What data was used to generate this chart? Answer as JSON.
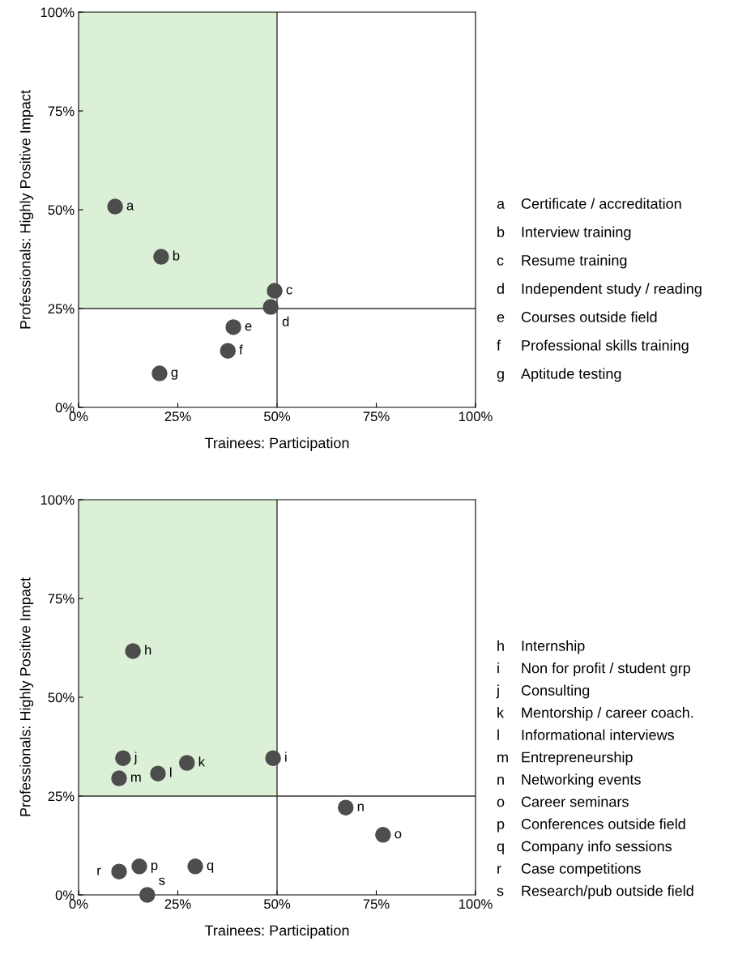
{
  "chart_data": [
    {
      "type": "scatter",
      "xlabel": "Trainees: Participation",
      "ylabel": "Professionals: Highly Positive Impact",
      "x": [
        9.2,
        20.8,
        49.4,
        48.4,
        39.0,
        37.6,
        20.4
      ],
      "series": [
        {
          "color": "#4d4d4d",
          "values": [
            50.8,
            38.1,
            29.5,
            25.4,
            20.3,
            14.3,
            8.6
          ],
          "value_labels": [
            "a",
            "b",
            "c",
            "d",
            "e",
            "f",
            "g"
          ]
        }
      ],
      "xlim": [
        0,
        100
      ],
      "ylim": [
        0,
        100
      ],
      "xticks": [
        {
          "value": 0,
          "label": "0%"
        },
        {
          "value": 25,
          "label": "25%"
        },
        {
          "value": 50,
          "label": "50%"
        },
        {
          "value": 75,
          "label": "75%"
        },
        {
          "value": 100,
          "label": "100%"
        }
      ],
      "yticks": [
        {
          "value": 0,
          "label": "0%"
        },
        {
          "value": 25,
          "label": "25%"
        },
        {
          "value": 50,
          "label": "50%"
        },
        {
          "value": 75,
          "label": "75%"
        },
        {
          "value": 100,
          "label": "100%"
        }
      ],
      "ref_lines": [
        {
          "axis": "x",
          "value": 50,
          "color": "#333333"
        },
        {
          "axis": "y",
          "value": 25,
          "color": "#333333"
        }
      ],
      "bands": [
        {
          "axis": "x",
          "from": 0,
          "to": 50,
          "color": "#dcf0d8"
        }
      ],
      "marker": "circle",
      "grid": false,
      "legend": false,
      "annotations": [
        "a Certificate / accreditation",
        "b Interview training",
        "c Resume training",
        "d Independent study / reading",
        "e Courses outside field",
        "f Professional skills training",
        "g Aptitude testing"
      ]
    },
    {
      "type": "scatter",
      "xlabel": "Trainees: Participation",
      "ylabel": "Professionals: Highly Positive Impact",
      "x": [
        13.7,
        49.0,
        11.2,
        27.3,
        20.0,
        10.2,
        67.3,
        76.7,
        15.3,
        29.4,
        10.2,
        17.3
      ],
      "series": [
        {
          "color": "#4d4d4d",
          "values": [
            61.7,
            34.6,
            34.6,
            33.4,
            30.7,
            29.5,
            22.1,
            15.2,
            7.2,
            7.2,
            5.9,
            0
          ],
          "value_labels": [
            "h",
            "i",
            "j",
            "k",
            "l",
            "m",
            "n",
            "o",
            "p",
            "q",
            "r",
            "s"
          ]
        }
      ],
      "xlim": [
        0,
        100
      ],
      "ylim": [
        0,
        100
      ],
      "xticks": [
        {
          "value": 0,
          "label": "0%"
        },
        {
          "value": 25,
          "label": "25%"
        },
        {
          "value": 50,
          "label": "50%"
        },
        {
          "value": 75,
          "label": "75%"
        },
        {
          "value": 100,
          "label": "100%"
        }
      ],
      "yticks": [
        {
          "value": 0,
          "label": "0%"
        },
        {
          "value": 25,
          "label": "25%"
        },
        {
          "value": 50,
          "label": "50%"
        },
        {
          "value": 75,
          "label": "75%"
        },
        {
          "value": 100,
          "label": "100%"
        }
      ],
      "ref_lines": [
        {
          "axis": "x",
          "value": 50,
          "color": "#333333"
        },
        {
          "axis": "y",
          "value": 25,
          "color": "#333333"
        }
      ],
      "bands": [
        {
          "axis": "x",
          "from": 0,
          "to": 50,
          "color": "#dcf0d8"
        }
      ],
      "marker": "circle",
      "grid": false,
      "legend": false,
      "annotations": [
        "h Internship",
        "i Non for profit / student grp",
        "j Consulting",
        "k Mentorship / career coach.",
        "l Informational interviews",
        "m Entrepreneurship",
        "n Networking events",
        "o Career seminars",
        "p Conferences outside field",
        "q Company info sessions",
        "r Case competitions",
        "s Research/pub outside field"
      ]
    }
  ]
}
